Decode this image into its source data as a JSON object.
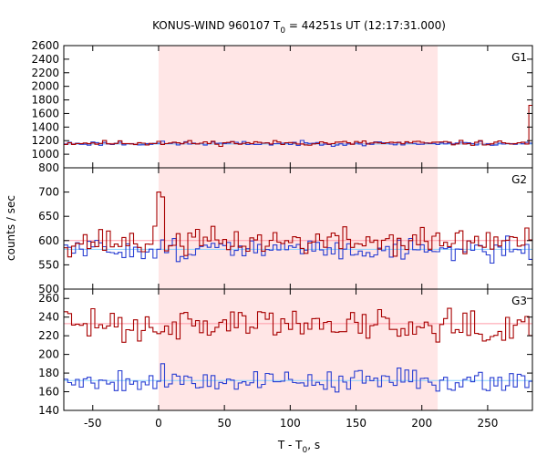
{
  "chart_data": {
    "type": "line",
    "title": "KONUS-WIND 960107 T",
    "title_sub": "0",
    "title_rest": " = 44251s UT (12:17:31.000)",
    "xlabel": "T - T",
    "xlabel_sub": "0",
    "xlabel_rest": ", s",
    "ylabel": "counts / sec",
    "xlim": [
      -72,
      284
    ],
    "x_ticks": [
      -50,
      0,
      50,
      100,
      150,
      200,
      250
    ],
    "highlight_interval": [
      0,
      212
    ],
    "colors": {
      "highlight": "#ffe6e6",
      "series_red": "#a80000",
      "series_blue": "#2a3fd2",
      "bg_red": "#ff9aa8",
      "bg_blue": "#8ad2ff"
    },
    "panels": [
      {
        "label": "G1",
        "ylim": [
          800,
          2600
        ],
        "y_ticks": [
          800,
          1000,
          1200,
          1400,
          1600,
          1800,
          2000,
          2200,
          2400,
          2600
        ],
        "background_red": 1160,
        "background_blue": 1150,
        "red_base": 1165,
        "red_amp": 18,
        "red_seed": 11,
        "blue_base": 1158,
        "blue_amp": 16,
        "blue_seed": 23,
        "red_peak": {
          "x": 0,
          "value": 1190
        },
        "red_end_spike": 1720
      },
      {
        "label": "G2",
        "ylim": [
          500,
          750
        ],
        "y_ticks": [
          500,
          550,
          600,
          650,
          700
        ],
        "background_red": 600,
        "background_blue": 582,
        "red_base": 598,
        "red_amp": 14,
        "red_seed": 37,
        "blue_base": 582,
        "blue_amp": 11,
        "blue_seed": 51,
        "red_peak": {
          "x": 1,
          "value": 700
        },
        "red_peak2": {
          "x": 3,
          "value": 690
        }
      },
      {
        "label": "G3",
        "ylim": [
          140,
          270
        ],
        "y_ticks": [
          140,
          160,
          180,
          200,
          220,
          240,
          260
        ],
        "background_red": 233,
        "background_blue": 172,
        "red_base": 233,
        "red_amp": 9,
        "red_seed": 63,
        "blue_base": 172,
        "blue_amp": 6,
        "blue_seed": 79,
        "blue_peak": {
          "x": 2,
          "value": 190
        }
      }
    ],
    "bin_width": 2.944
  }
}
